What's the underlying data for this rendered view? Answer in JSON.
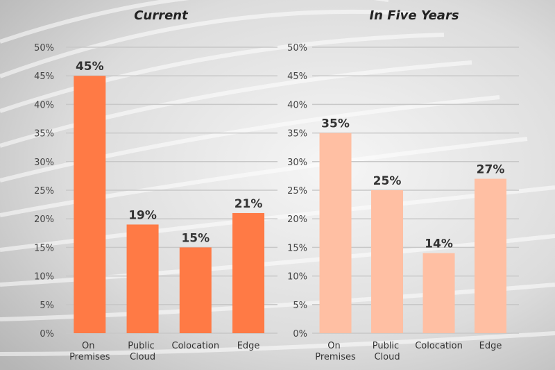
{
  "chart_data": [
    {
      "type": "bar",
      "title": "Current",
      "categories": [
        "On Premises",
        "Public Cloud",
        "Colocation",
        "Edge"
      ],
      "values": [
        45,
        19,
        15,
        21
      ],
      "value_labels": [
        "45%",
        "19%",
        "15%",
        "21%"
      ],
      "color": "#ff7a45",
      "ylim": [
        0,
        50
      ],
      "yticks": [
        {
          "value": 0,
          "label": "0%"
        },
        {
          "value": 5,
          "label": "5%"
        },
        {
          "value": 10,
          "label": "10%"
        },
        {
          "value": 15,
          "label": "15%"
        },
        {
          "value": 20,
          "label": "20%"
        },
        {
          "value": 25,
          "label": "25%"
        },
        {
          "value": 30,
          "label": "30%"
        },
        {
          "value": 35,
          "label": "35%"
        },
        {
          "value": 40,
          "label": "40%"
        },
        {
          "value": 45,
          "label": "45%"
        },
        {
          "value": 50,
          "label": "50%"
        }
      ],
      "grid": true
    },
    {
      "type": "bar",
      "title": "In Five Years",
      "categories": [
        "On Premises",
        "Public Cloud",
        "Colocation",
        "Edge"
      ],
      "values": [
        35,
        25,
        14,
        27
      ],
      "value_labels": [
        "35%",
        "25%",
        "14%",
        "27%"
      ],
      "color": "#ffbfa3",
      "ylim": [
        0,
        50
      ],
      "yticks": [
        {
          "value": 0,
          "label": "0%"
        },
        {
          "value": 5,
          "label": "5%"
        },
        {
          "value": 10,
          "label": "10%"
        },
        {
          "value": 15,
          "label": "15%"
        },
        {
          "value": 20,
          "label": "20%"
        },
        {
          "value": 25,
          "label": "25%"
        },
        {
          "value": 30,
          "label": "30%"
        },
        {
          "value": 35,
          "label": "35%"
        },
        {
          "value": 40,
          "label": "40%"
        },
        {
          "value": 45,
          "label": "45%"
        },
        {
          "value": 50,
          "label": "50%"
        }
      ],
      "grid": true
    }
  ]
}
